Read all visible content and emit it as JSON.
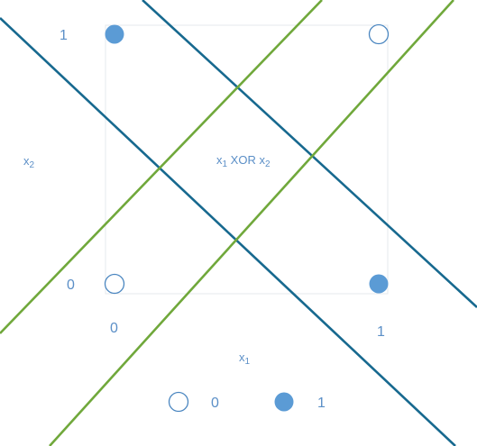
{
  "labels": {
    "y_one": "1",
    "y_zero": "0",
    "x_zero": "0",
    "x_one": "1",
    "x2_axis": {
      "base": "x",
      "sub": "2"
    },
    "x1_axis": {
      "base": "x",
      "sub": "1"
    },
    "center": {
      "a_base": "x",
      "a_sub": "1",
      "op": " XOR ",
      "b_base": "x",
      "b_sub": "2"
    }
  },
  "points": [
    {
      "x": 0,
      "y": 1,
      "class": 1
    },
    {
      "x": 1,
      "y": 1,
      "class": 0
    },
    {
      "x": 0,
      "y": 0,
      "class": 0
    },
    {
      "x": 1,
      "y": 0,
      "class": 1
    }
  ],
  "legend": [
    {
      "class": 0,
      "label": "0"
    },
    {
      "class": 1,
      "label": "1"
    }
  ],
  "colors": {
    "filled": "#5b9bd5",
    "hollow_stroke": "#4a86c0",
    "blue_line": "#17698f",
    "green_line": "#70a83b",
    "text": "#5b8fc7",
    "box": "#e4e8ec"
  }
}
